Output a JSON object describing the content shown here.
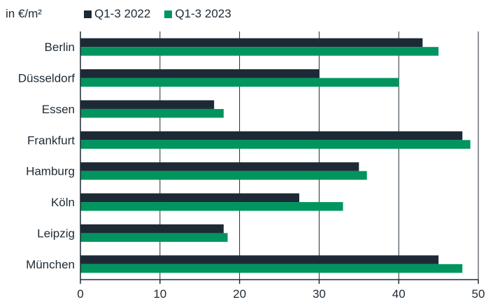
{
  "chart_data": {
    "type": "bar",
    "orientation": "horizontal",
    "unit_label": "in €/m²",
    "categories": [
      "Berlin",
      "Düsseldorf",
      "Essen",
      "Frankfurt",
      "Hamburg",
      "Köln",
      "Leipzig",
      "München"
    ],
    "series": [
      {
        "name": "Q1-3 2022",
        "color": "#1d2a35",
        "values": [
          43,
          30,
          16.8,
          48,
          35,
          27.5,
          18,
          45
        ]
      },
      {
        "name": "Q1-3 2023",
        "color": "#00945e",
        "values": [
          45,
          40,
          18,
          49,
          36,
          33,
          18.5,
          48
        ]
      }
    ],
    "xlim": [
      0,
      50
    ],
    "xticks": [
      0,
      10,
      20,
      30,
      40,
      50
    ],
    "grid": "vertical",
    "legend_position": "top"
  }
}
